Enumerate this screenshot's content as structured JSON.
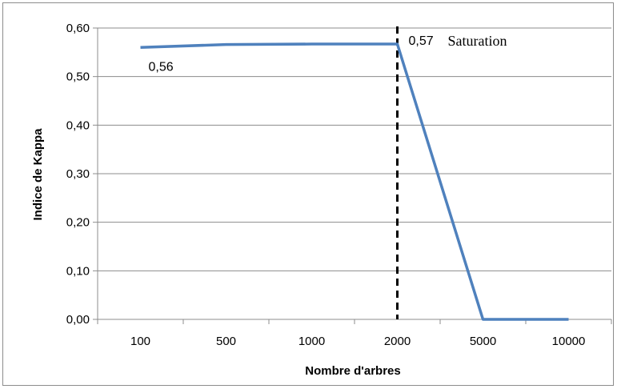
{
  "chart_data": {
    "type": "line",
    "categories": [
      "100",
      "500",
      "1000",
      "2000",
      "5000",
      "10000"
    ],
    "series": [
      {
        "values": [
          0.56,
          0.566,
          0.567,
          0.567,
          0.0,
          0.0
        ],
        "color": "#4f81bd"
      }
    ],
    "xlabel": "Nombre d'arbres",
    "ylabel": "Indice de Kappa",
    "ylim": [
      0,
      0.6
    ],
    "yticks": [
      "0,00",
      "0,10",
      "0,20",
      "0,30",
      "0,40",
      "0,50",
      "0,60"
    ],
    "grid": true,
    "data_labels": [
      {
        "category_index": 0,
        "text": "0,56"
      },
      {
        "category_index": 3,
        "text": "0,57"
      }
    ],
    "reference_line": {
      "category": "2000",
      "style": "dashed",
      "label": "Saturation"
    }
  }
}
